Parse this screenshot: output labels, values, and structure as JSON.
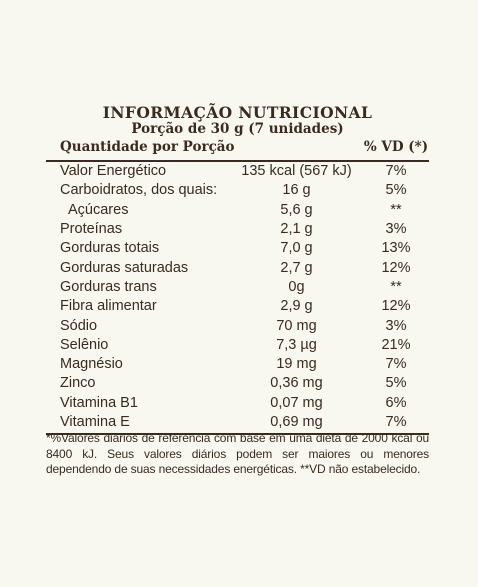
{
  "label": {
    "title": "INFORMAÇÃO NUTRICIONAL",
    "serving": "Porção de 30 g (7 unidades)",
    "header": {
      "quantity": "Quantidade por Porção",
      "vd": "% VD (*)"
    },
    "rows": [
      {
        "name": "Valor Energético",
        "amount": "135 kcal (567 kJ)",
        "vd": "7%"
      },
      {
        "name": "Carboidratos, dos quais:",
        "amount": "16 g",
        "vd": "5%"
      },
      {
        "name": "Açúcares",
        "amount": "5,6 g",
        "vd": "**"
      },
      {
        "name": "Proteínas",
        "amount": "2,1 g",
        "vd": "3%"
      },
      {
        "name": "Gorduras totais",
        "amount": "7,0 g",
        "vd": "13%"
      },
      {
        "name": "Gorduras saturadas",
        "amount": "2,7 g",
        "vd": "12%"
      },
      {
        "name": "Gorduras trans",
        "amount": "0g",
        "vd": "**"
      },
      {
        "name": "Fibra alimentar",
        "amount": "2,9 g",
        "vd": "12%"
      },
      {
        "name": "Sódio",
        "amount": "70 mg",
        "vd": "3%"
      },
      {
        "name": "Selênio",
        "amount": "7,3 µg",
        "vd": "21%"
      },
      {
        "name": "Magnésio",
        "amount": "19 mg",
        "vd": "7%"
      },
      {
        "name": "Zinco",
        "amount": "0,36 mg",
        "vd": "5%"
      },
      {
        "name": "Vitamina B1",
        "amount": "0,07 mg",
        "vd": "6%"
      },
      {
        "name": "Vitamina E",
        "amount": "0,69 mg",
        "vd": "7%"
      }
    ],
    "footnote": "*%Valores diários de referência com base em uma dieta de 2000 kcal ou 8400 kJ. Seus valores diários podem ser maiores ou menores dependendo de suas necessidades energéticas. **VD não estabelecido."
  },
  "colors": {
    "background": "#f8f8f0",
    "text": "#3a2a1f"
  }
}
